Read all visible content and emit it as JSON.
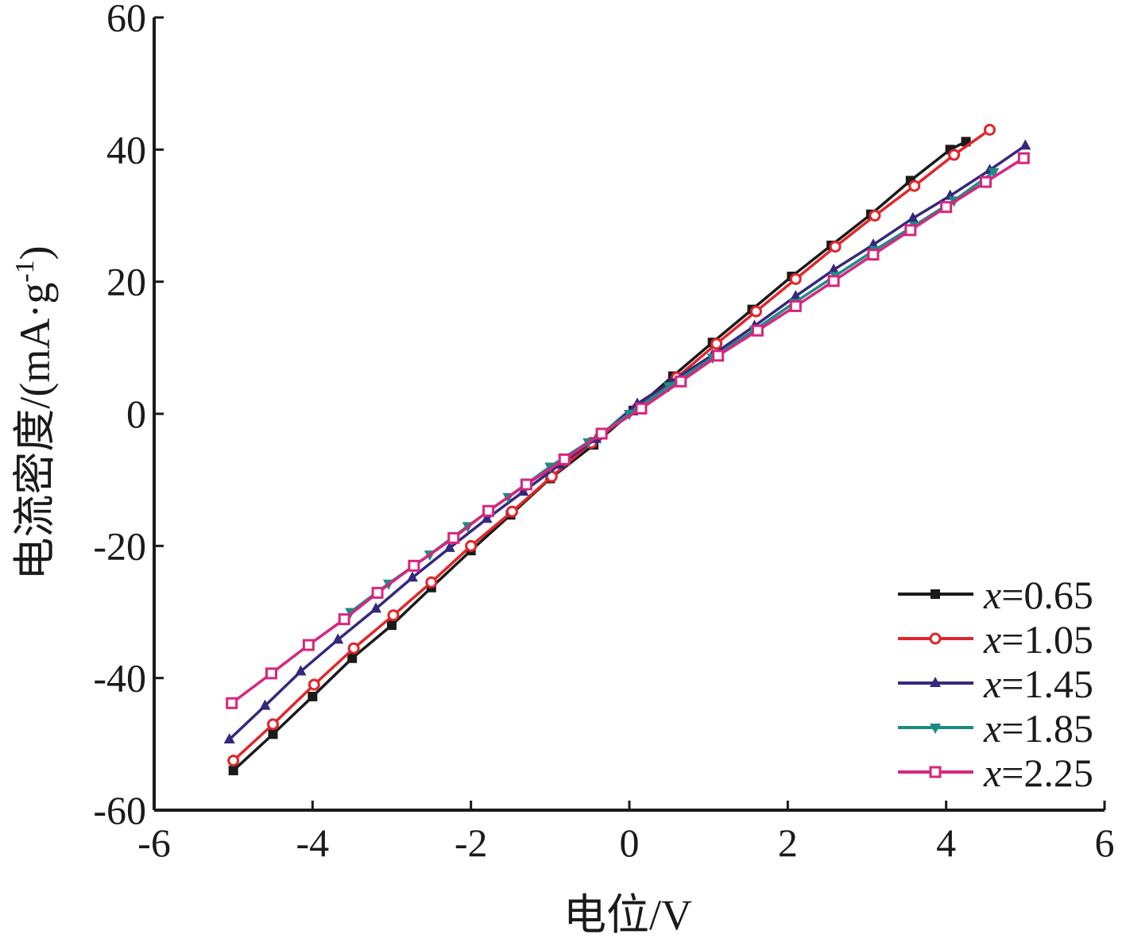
{
  "chart_data": {
    "type": "line",
    "xlabel": "电位/V",
    "ylabel": "电流密度/(mA·g-1)",
    "ylabel_parts": {
      "main": "电流密度/(mA·g",
      "sup": "-1",
      "close": ")"
    },
    "xlim": [
      -6,
      6
    ],
    "ylim": [
      -60,
      60
    ],
    "xticks": [
      -6,
      -4,
      -2,
      0,
      2,
      4,
      6
    ],
    "yticks": [
      -60,
      -40,
      -20,
      0,
      20,
      40,
      60
    ],
    "xtick_labels": [
      "-6",
      "-4",
      "-2",
      "0",
      "2",
      "4",
      "6"
    ],
    "ytick_labels": [
      "-60",
      "-40",
      "-20",
      "0",
      "20",
      "40",
      "60"
    ],
    "grid": false,
    "legend_position": "bottom-right",
    "legend_var": "x",
    "series": [
      {
        "name": "x=0.65",
        "label_value": "=0.65",
        "color": "#1a1a1a",
        "marker": "square",
        "x": [
          -5.0,
          -4.5,
          -4.0,
          -3.5,
          -3.0,
          -2.5,
          -2.0,
          -1.5,
          -1.0,
          -0.45,
          0.05,
          0.55,
          1.05,
          1.55,
          2.05,
          2.55,
          3.05,
          3.55,
          4.05,
          4.25
        ],
        "y": [
          -54,
          -48.5,
          -42.8,
          -37,
          -32,
          -26.3,
          -20.7,
          -15.3,
          -9.8,
          -4.7,
          0.5,
          5.7,
          10.8,
          15.8,
          20.8,
          25.5,
          30.2,
          35.3,
          40,
          41.2
        ]
      },
      {
        "name": "x=1.05",
        "label_value": "=1.05",
        "color": "#e0262b",
        "marker": "open-circle",
        "x": [
          -5.0,
          -4.5,
          -3.98,
          -3.48,
          -2.98,
          -2.5,
          -2.0,
          -1.48,
          -0.98,
          -0.48,
          0.1,
          0.6,
          1.1,
          1.6,
          2.1,
          2.6,
          3.1,
          3.6,
          4.1,
          4.55
        ],
        "y": [
          -52.5,
          -47,
          -41,
          -35.5,
          -30.5,
          -25.5,
          -20,
          -14.8,
          -9.5,
          -4.4,
          0.8,
          5.5,
          10.6,
          15.5,
          20.4,
          25.3,
          30,
          34.5,
          39.2,
          43
        ]
      },
      {
        "name": "x=1.45",
        "label_value": "=1.45",
        "color": "#35287e",
        "marker": "triangle-up",
        "x": [
          -5.05,
          -4.6,
          -4.15,
          -3.68,
          -3.2,
          -2.74,
          -2.27,
          -1.8,
          -1.34,
          -0.88,
          -0.42,
          0.1,
          0.52,
          1.05,
          1.58,
          2.1,
          2.58,
          3.08,
          3.58,
          4.05,
          4.55,
          5.0
        ],
        "y": [
          -49.3,
          -44.2,
          -39,
          -34.2,
          -29.5,
          -24.8,
          -20.3,
          -15.9,
          -11.8,
          -7.7,
          -3.8,
          1.5,
          4.8,
          8.9,
          13.3,
          17.8,
          21.8,
          25.6,
          29.6,
          33,
          36.9,
          40.6
        ]
      },
      {
        "name": "x=1.85",
        "label_value": "=1.85",
        "color": "#1e8b86",
        "marker": "triangle-down",
        "x": [
          -3.52,
          -3.04,
          -2.52,
          -2.04,
          -1.53,
          -1.0,
          -0.52,
          0.0,
          0.5,
          1.05,
          1.58,
          2.08,
          2.6,
          3.1,
          3.6,
          4.1,
          4.6
        ],
        "y": [
          -30,
          -25.7,
          -21.3,
          -17,
          -12.6,
          -8,
          -4.3,
          0,
          4.2,
          8.5,
          12.7,
          16.8,
          20.9,
          24.8,
          28.5,
          32.3,
          36.6
        ]
      },
      {
        "name": "x=2.25",
        "label_value": "=2.25",
        "color": "#d6267f",
        "marker": "open-square",
        "x": [
          -5.02,
          -4.52,
          -4.05,
          -3.6,
          -3.18,
          -2.72,
          -2.22,
          -1.78,
          -1.3,
          -0.82,
          -0.35,
          0.15,
          0.65,
          1.12,
          1.62,
          2.1,
          2.58,
          3.08,
          3.55,
          4.0,
          4.5,
          4.98
        ],
        "y": [
          -43.8,
          -39.3,
          -35,
          -31.1,
          -27.1,
          -23,
          -18.8,
          -14.7,
          -10.7,
          -6.9,
          -3,
          0.8,
          4.9,
          8.8,
          12.6,
          16.3,
          20.1,
          24.1,
          27.8,
          31.3,
          35.1,
          38.7
        ]
      }
    ]
  }
}
